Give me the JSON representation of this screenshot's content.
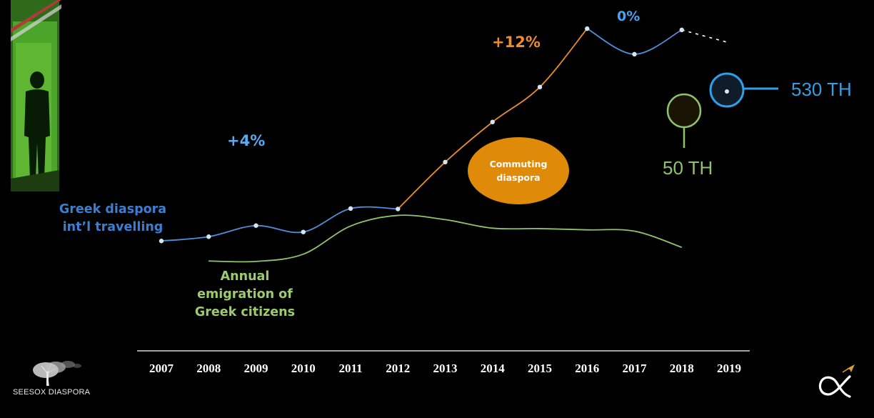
{
  "brand": {
    "logo_text": "SEESOX DIASPORA"
  },
  "colors": {
    "background": "#000000",
    "diaspora_travel": "#4f8fdc",
    "diaspora_travel_label": "#3a7fd5",
    "emigration": "#8fc36b",
    "emigration_label": "#9ccc6e",
    "commuting": "#e98d2b",
    "commuting_bubble": "#e08a0a",
    "pct_label": "#5aaaf0",
    "axis": "#ffffff",
    "marker": "#d6e6f0"
  },
  "chart_data": {
    "type": "line",
    "x": [
      "2007",
      "2008",
      "2009",
      "2010",
      "2011",
      "2012",
      "2013",
      "2014",
      "2015",
      "2016",
      "2017",
      "2018",
      "2019"
    ],
    "series": [
      {
        "name": "Greek diaspora int’l travelling",
        "points": [
          [
            2007,
            65
          ],
          [
            2008,
            75
          ],
          [
            2009,
            101
          ],
          [
            2010,
            86
          ],
          [
            2011,
            141
          ],
          [
            2012,
            140
          ],
          [
            2013,
            250
          ],
          [
            2014,
            344
          ],
          [
            2015,
            426
          ],
          [
            2016,
            563
          ],
          [
            2017,
            503
          ],
          [
            2018,
            560
          ],
          [
            2019,
            530
          ]
        ],
        "markers": true,
        "segment_colors": [
          {
            "from": 2007,
            "to": 2012,
            "color": "#4f8fdc"
          },
          {
            "from": 2012,
            "to": 2016,
            "color": "#e98d2b"
          },
          {
            "from": 2016,
            "to": 2018,
            "color": "#4f8fdc"
          },
          {
            "from": 2018,
            "to": 2019,
            "color": "#ffffff",
            "dashed": true
          }
        ]
      },
      {
        "name": "Annual emigration of Greek citizens",
        "points": [
          [
            2008,
            18
          ],
          [
            2009,
            17
          ],
          [
            2010,
            34
          ],
          [
            2011,
            100
          ],
          [
            2012,
            125
          ],
          [
            2013,
            115
          ],
          [
            2014,
            95
          ],
          [
            2015,
            94
          ],
          [
            2016,
            91
          ],
          [
            2017,
            88
          ],
          [
            2018,
            50
          ]
        ],
        "markers": false
      }
    ],
    "annotations": {
      "growth_2008_2010": "+4%",
      "growth_2012_2015": "+12%",
      "growth_2016_2018": "0%",
      "travel_2019": "530 TH",
      "emigration_2018": "50 TH",
      "bubble": "Commuting\ndiaspora"
    },
    "labels": {
      "travel": [
        "Greek diaspora",
        "int’l travelling"
      ],
      "emigration": [
        "Annual",
        "emigration of",
        "Greek citizens"
      ],
      "bubble": [
        "Commuting",
        "diaspora"
      ]
    }
  }
}
